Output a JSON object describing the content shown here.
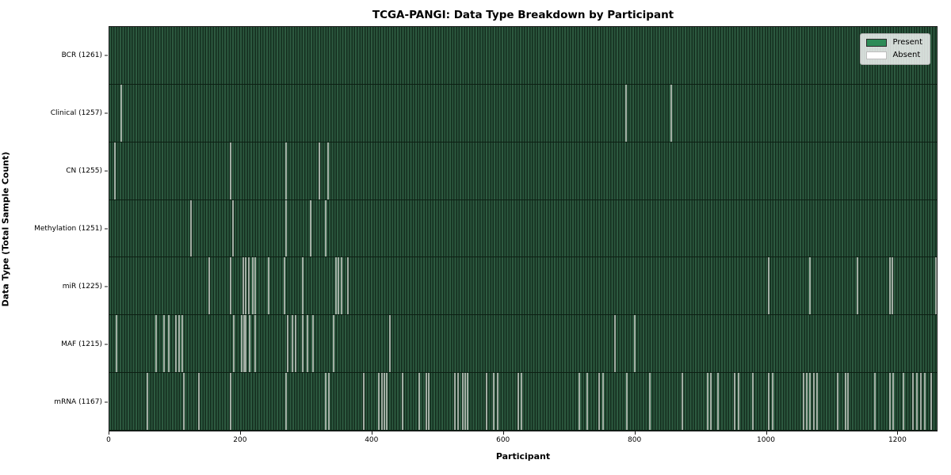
{
  "chart_data": {
    "type": "heatmap",
    "title": "TCGA-PANGI: Data Type Breakdown by Participant",
    "xlabel": "Participant",
    "ylabel": "Data Type (Total Sample Count)",
    "x_ticks": [
      0,
      200,
      400,
      600,
      800,
      1000,
      1200
    ],
    "x_range": [
      0,
      1261
    ],
    "grid": false,
    "legend_position": "upper right",
    "legend": [
      {
        "label": "Present",
        "color": "#2e8b57"
      },
      {
        "label": "Absent",
        "color": "#ffffff"
      }
    ],
    "colors": {
      "present": "#2e8b57",
      "absent": "#ffffff",
      "band_stripe_light": "#2d5a40",
      "band_stripe_dark": "#142d1e",
      "absent_stripe": "#aab4ab"
    },
    "rows": [
      {
        "data_type": "BCR",
        "total": 1261,
        "label": "BCR (1261)",
        "absent_participants": []
      },
      {
        "data_type": "Clinical",
        "total": 1257,
        "label": "Clinical (1257)",
        "absent_participants": [
          17,
          786,
          855
        ]
      },
      {
        "data_type": "CN",
        "total": 1255,
        "label": "CN (1255)",
        "absent_participants": [
          7,
          184,
          268,
          319,
          332
        ]
      },
      {
        "data_type": "Methylation",
        "total": 1251,
        "label": "Methylation (1251)",
        "absent_participants": [
          123,
          187,
          268,
          305,
          329
        ]
      },
      {
        "data_type": "miR",
        "total": 1225,
        "label": "miR (1225)",
        "absent_participants": [
          151,
          184,
          203,
          206,
          211,
          217,
          221,
          241,
          266,
          293,
          344,
          348,
          353,
          362,
          1004,
          1067,
          1139,
          1188,
          1192,
          1258
        ]
      },
      {
        "data_type": "MAF",
        "total": 1215,
        "label": "MAF (1215)",
        "absent_participants": [
          10,
          70,
          82,
          89,
          100,
          105,
          110,
          188,
          200,
          204,
          207,
          212,
          221,
          271,
          278,
          283,
          293,
          301,
          309,
          341,
          426,
          769,
          799
        ]
      },
      {
        "data_type": "mRNA",
        "total": 1167,
        "label": "mRNA (1167)",
        "absent_participants": [
          57,
          112,
          135,
          184,
          268,
          329,
          333,
          387,
          409,
          414,
          418,
          422,
          446,
          471,
          482,
          486,
          526,
          530,
          538,
          541,
          545,
          574,
          585,
          591,
          622,
          627,
          715,
          727,
          745,
          751,
          787,
          823,
          872,
          911,
          916,
          926,
          952,
          958,
          980,
          1004,
          1010,
          1057,
          1062,
          1067,
          1073,
          1078,
          1109,
          1121,
          1125,
          1165,
          1189,
          1193,
          1209,
          1224,
          1230,
          1236,
          1242,
          1251
        ]
      }
    ]
  }
}
